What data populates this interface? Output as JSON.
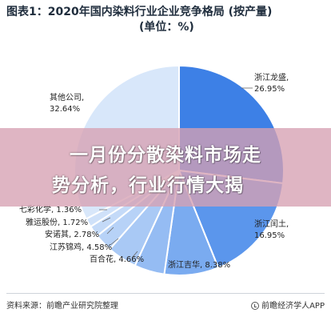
{
  "title": {
    "line1": "图表1：2020年国内染料行业企业竞争格局 (按产量)",
    "line2": "(单位：%)"
  },
  "banner": {
    "line1": "一月份分散染料市场走",
    "line2": "势分析，行业行情大揭"
  },
  "footer": {
    "source": "资料来源：前瞻产业研究院整理",
    "brand": "前瞻经济学人APP"
  },
  "chart_data": {
    "type": "pie",
    "title": "图表1：2020年国内染料行业企业竞争格局 (按产量)",
    "unit": "%",
    "slices": [
      {
        "name": "浙江龙盛",
        "value": 26.95,
        "label": "浙江龙盛,\n26.95%",
        "color": "#3d80e6"
      },
      {
        "name": "浙江闰土",
        "value": 16.95,
        "label": "浙江闰土,\n16.95%",
        "color": "#5b96ec"
      },
      {
        "name": "浙江吉华",
        "value": 8.38,
        "label": "浙江吉华, 8.38%",
        "color": "#7aabf0"
      },
      {
        "name": "百合花",
        "value": 4.66,
        "label": "百合花, 4.66%",
        "color": "#95bcf3"
      },
      {
        "name": "江苏锦鸡",
        "value": 4.58,
        "label": "江苏锦鸡, 4.58%",
        "color": "#a9c9f5"
      },
      {
        "name": "安诺其",
        "value": 2.78,
        "label": "安诺其, 2.78%",
        "color": "#b7d2f7"
      },
      {
        "name": "雅运股份",
        "value": 1.72,
        "label": "雅运股份, 1.72%",
        "color": "#c4daf8"
      },
      {
        "name": "七彩化学",
        "value": 1.36,
        "label": "七彩化学, 1.36%",
        "color": "#cfe1f9"
      },
      {
        "name": "其他公司",
        "value": 32.64,
        "label": "其他公司,\n32.64%",
        "color": "#d8e7fa"
      }
    ]
  }
}
